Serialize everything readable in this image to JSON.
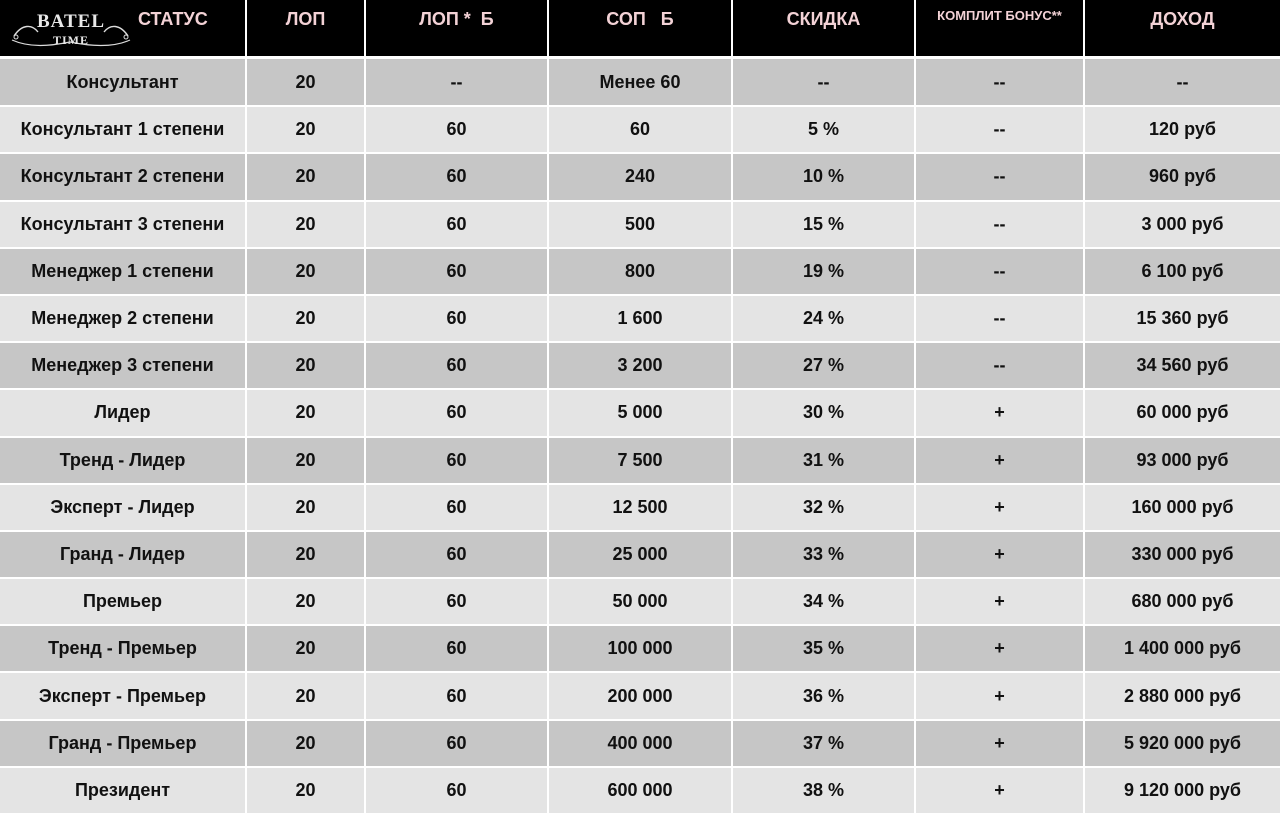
{
  "logo": {
    "line1": "BATEL",
    "line2": "TIME"
  },
  "headers": {
    "status": "СТАТУС",
    "lop": "ЛОП",
    "lop_b": "ЛОП *  Б",
    "sop_b": "СОП   Б",
    "discount": "СКИДКА",
    "komplit_bonus": "КОМПЛИТ БОНУС**",
    "income": "ДОХОД"
  },
  "rows": [
    {
      "status": "Консультант",
      "lop": "20",
      "lop_b": "--",
      "sop_b": "Менее 60",
      "discount": "--",
      "bonus": "--",
      "income": "--"
    },
    {
      "status": "Консультант 1 степени",
      "lop": "20",
      "lop_b": "60",
      "sop_b": "60",
      "discount": "5 %",
      "bonus": "--",
      "income": "120 руб"
    },
    {
      "status": "Консультант 2 степени",
      "lop": "20",
      "lop_b": "60",
      "sop_b": "240",
      "discount": "10 %",
      "bonus": "--",
      "income": "960 руб"
    },
    {
      "status": "Консультант 3 степени",
      "lop": "20",
      "lop_b": "60",
      "sop_b": "500",
      "discount": "15 %",
      "bonus": "--",
      "income": "3 000 руб"
    },
    {
      "status": "Менеджер 1 степени",
      "lop": "20",
      "lop_b": "60",
      "sop_b": "800",
      "discount": "19 %",
      "bonus": "--",
      "income": "6 100 руб"
    },
    {
      "status": "Менеджер 2 степени",
      "lop": "20",
      "lop_b": "60",
      "sop_b": "1 600",
      "discount": "24 %",
      "bonus": "--",
      "income": "15 360 руб"
    },
    {
      "status": "Менеджер 3 степени",
      "lop": "20",
      "lop_b": "60",
      "sop_b": "3 200",
      "discount": "27 %",
      "bonus": "--",
      "income": "34 560 руб"
    },
    {
      "status": "Лидер",
      "lop": "20",
      "lop_b": "60",
      "sop_b": "5 000",
      "discount": "30 %",
      "bonus": "+",
      "income": "60 000 руб"
    },
    {
      "status": "Тренд - Лидер",
      "lop": "20",
      "lop_b": "60",
      "sop_b": "7 500",
      "discount": "31 %",
      "bonus": "+",
      "income": "93 000 руб"
    },
    {
      "status": "Эксперт - Лидер",
      "lop": "20",
      "lop_b": "60",
      "sop_b": "12 500",
      "discount": "32 %",
      "bonus": "+",
      "income": "160 000 руб"
    },
    {
      "status": "Гранд - Лидер",
      "lop": "20",
      "lop_b": "60",
      "sop_b": "25 000",
      "discount": "33 %",
      "bonus": "+",
      "income": "330 000 руб"
    },
    {
      "status": "Премьер",
      "lop": "20",
      "lop_b": "60",
      "sop_b": "50 000",
      "discount": "34 %",
      "bonus": "+",
      "income": "680 000 руб"
    },
    {
      "status": "Тренд - Премьер",
      "lop": "20",
      "lop_b": "60",
      "sop_b": "100 000",
      "discount": "35 %",
      "bonus": "+",
      "income": "1 400 000 руб"
    },
    {
      "status": "Эксперт - Премьер",
      "lop": "20",
      "lop_b": "60",
      "sop_b": "200 000",
      "discount": "36 %",
      "bonus": "+",
      "income": "2 880 000 руб"
    },
    {
      "status": "Гранд - Премьер",
      "lop": "20",
      "lop_b": "60",
      "sop_b": "400 000",
      "discount": "37 %",
      "bonus": "+",
      "income": "5 920 000 руб"
    },
    {
      "status": "Президент",
      "lop": "20",
      "lop_b": "60",
      "sop_b": "600 000",
      "discount": "38 %",
      "bonus": "+",
      "income": "9 120 000 руб"
    }
  ],
  "colors": {
    "header_bg": "#000000",
    "header_text": "#f3d2d6",
    "row_dark": "#c6c6c6",
    "row_light": "#e4e4e4"
  }
}
